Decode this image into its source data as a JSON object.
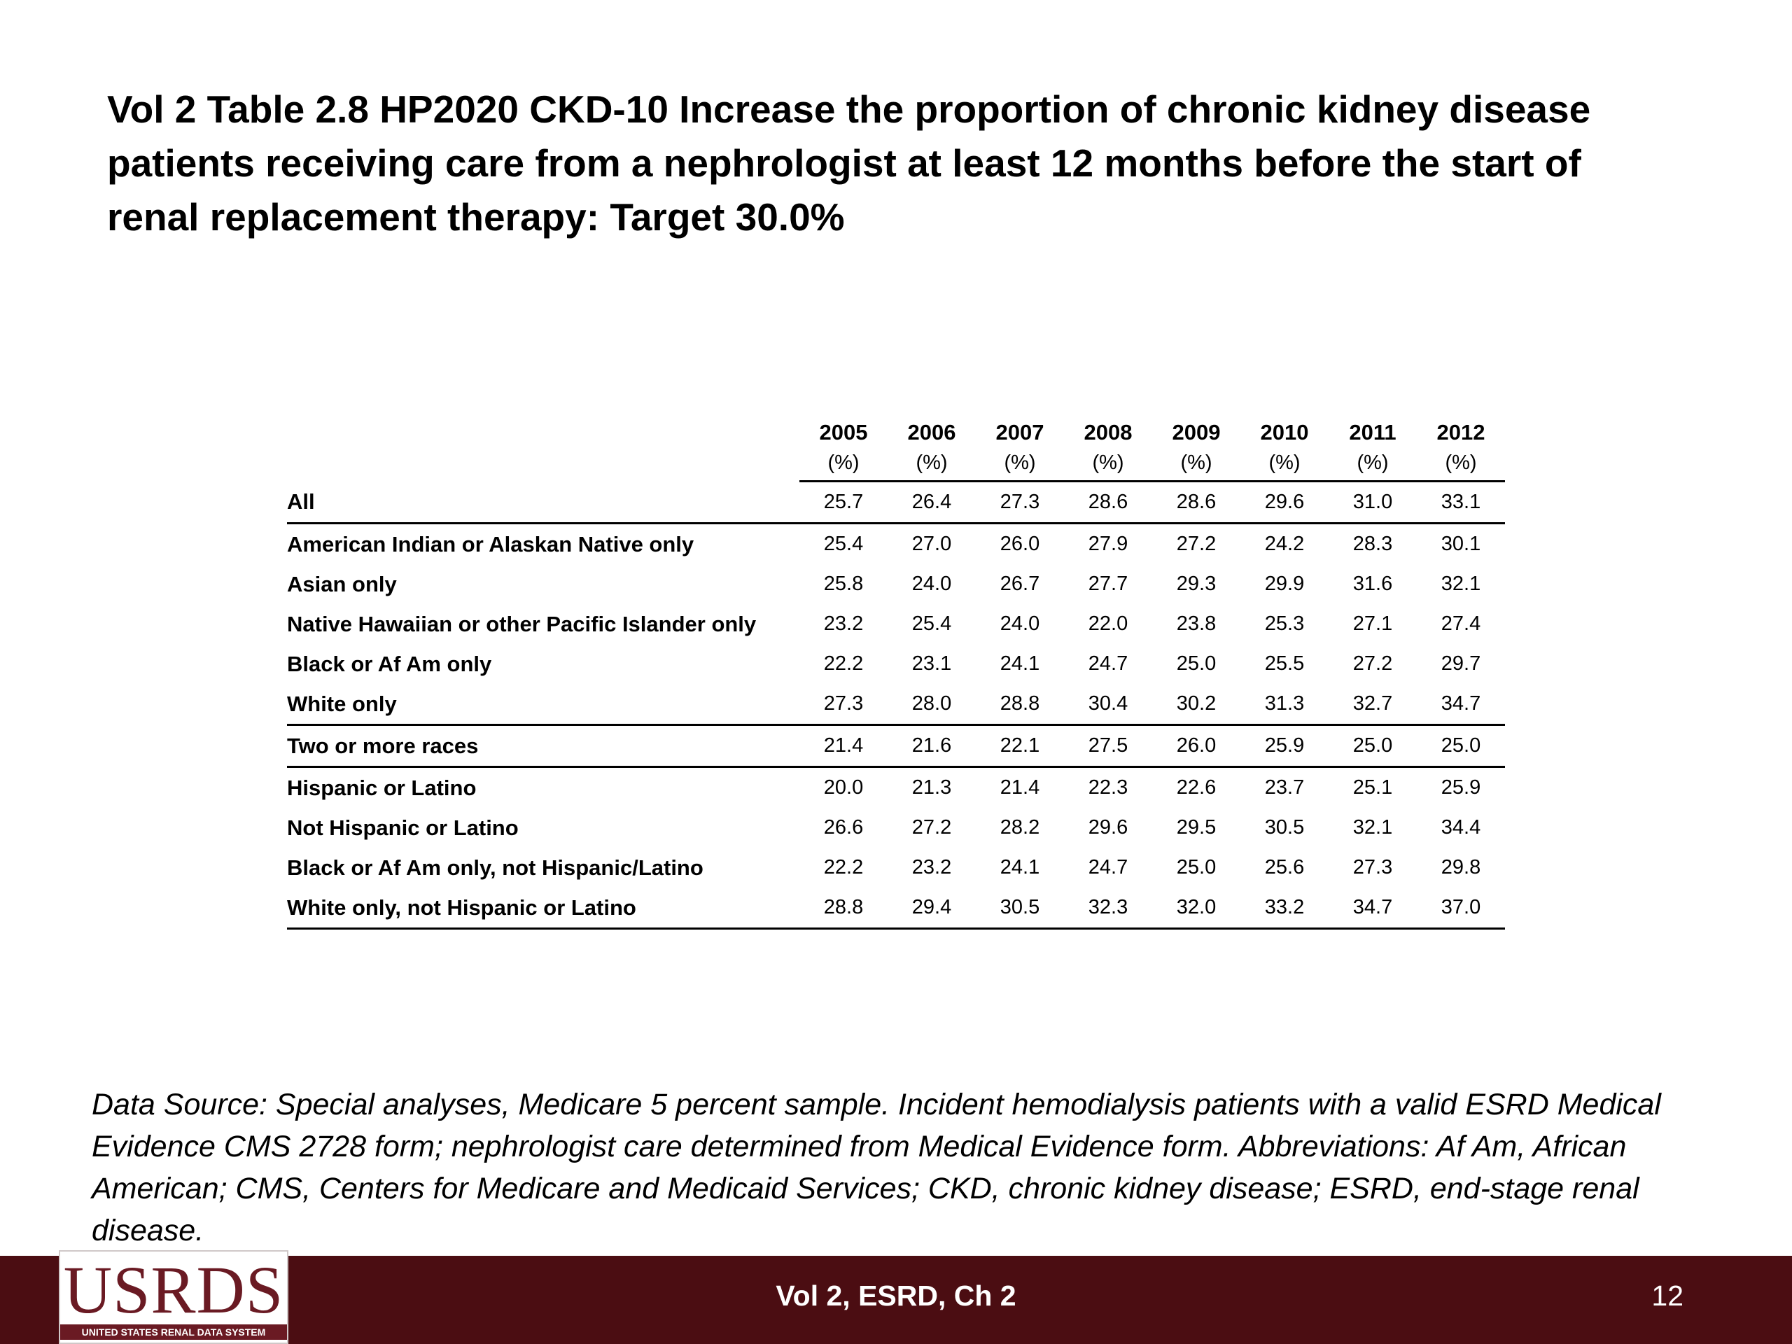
{
  "title": "Vol 2 Table 2.8  HP2020 CKD-10 Increase the proportion of chronic kidney disease patients receiving care from a nephrologist at least 12 months before the start of renal replacement therapy: Target 30.0%",
  "table": {
    "years": [
      "2005",
      "2006",
      "2007",
      "2008",
      "2009",
      "2010",
      "2011",
      "2012"
    ],
    "unit": "(%)",
    "rows": [
      {
        "label": "All",
        "values": [
          "25.7",
          "26.4",
          "27.3",
          "28.6",
          "28.6",
          "29.6",
          "31.0",
          "33.1"
        ]
      },
      {
        "label": "American Indian or Alaskan Native only",
        "values": [
          "25.4",
          "27.0",
          "26.0",
          "27.9",
          "27.2",
          "24.2",
          "28.3",
          "30.1"
        ]
      },
      {
        "label": "Asian only",
        "values": [
          "25.8",
          "24.0",
          "26.7",
          "27.7",
          "29.3",
          "29.9",
          "31.6",
          "32.1"
        ]
      },
      {
        "label": "Native Hawaiian or other Pacific Islander only",
        "values": [
          "23.2",
          "25.4",
          "24.0",
          "22.0",
          "23.8",
          "25.3",
          "27.1",
          "27.4"
        ]
      },
      {
        "label": "Black or Af Am only",
        "values": [
          "22.2",
          "23.1",
          "24.1",
          "24.7",
          "25.0",
          "25.5",
          "27.2",
          "29.7"
        ]
      },
      {
        "label": "White only",
        "values": [
          "27.3",
          "28.0",
          "28.8",
          "30.4",
          "30.2",
          "31.3",
          "32.7",
          "34.7"
        ]
      },
      {
        "label": "Two or more races",
        "values": [
          "21.4",
          "21.6",
          "22.1",
          "27.5",
          "26.0",
          "25.9",
          "25.0",
          "25.0"
        ]
      },
      {
        "label": "Hispanic or Latino",
        "values": [
          "20.0",
          "21.3",
          "21.4",
          "22.3",
          "22.6",
          "23.7",
          "25.1",
          "25.9"
        ]
      },
      {
        "label": "Not Hispanic or Latino",
        "values": [
          "26.6",
          "27.2",
          "28.2",
          "29.6",
          "29.5",
          "30.5",
          "32.1",
          "34.4"
        ]
      },
      {
        "label": "Black or Af Am only, not Hispanic/Latino",
        "values": [
          "22.2",
          "23.2",
          "24.1",
          "24.7",
          "25.0",
          "25.6",
          "27.3",
          "29.8"
        ]
      },
      {
        "label": "White only, not Hispanic or Latino",
        "values": [
          "28.8",
          "29.4",
          "30.5",
          "32.3",
          "32.0",
          "33.2",
          "34.7",
          "37.0"
        ]
      }
    ]
  },
  "footnote": "Data Source: Special analyses, Medicare 5 percent sample. Incident hemodialysis patients with a valid ESRD Medical Evidence CMS 2728 form; nephrologist care determined from Medical Evidence form. Abbreviations: Af Am, African American; CMS, Centers for Medicare and Medicaid Services; CKD, chronic kidney disease; ESRD, end-stage renal disease.",
  "footer": {
    "center_text": "Vol 2, ESRD, Ch 2",
    "page_number": "12",
    "logo_text": "USRDS",
    "logo_subtext": "UNITED STATES RENAL DATA SYSTEM"
  },
  "colors": {
    "footer_bar": "#4b0d12",
    "logo": "#6a1a23"
  }
}
